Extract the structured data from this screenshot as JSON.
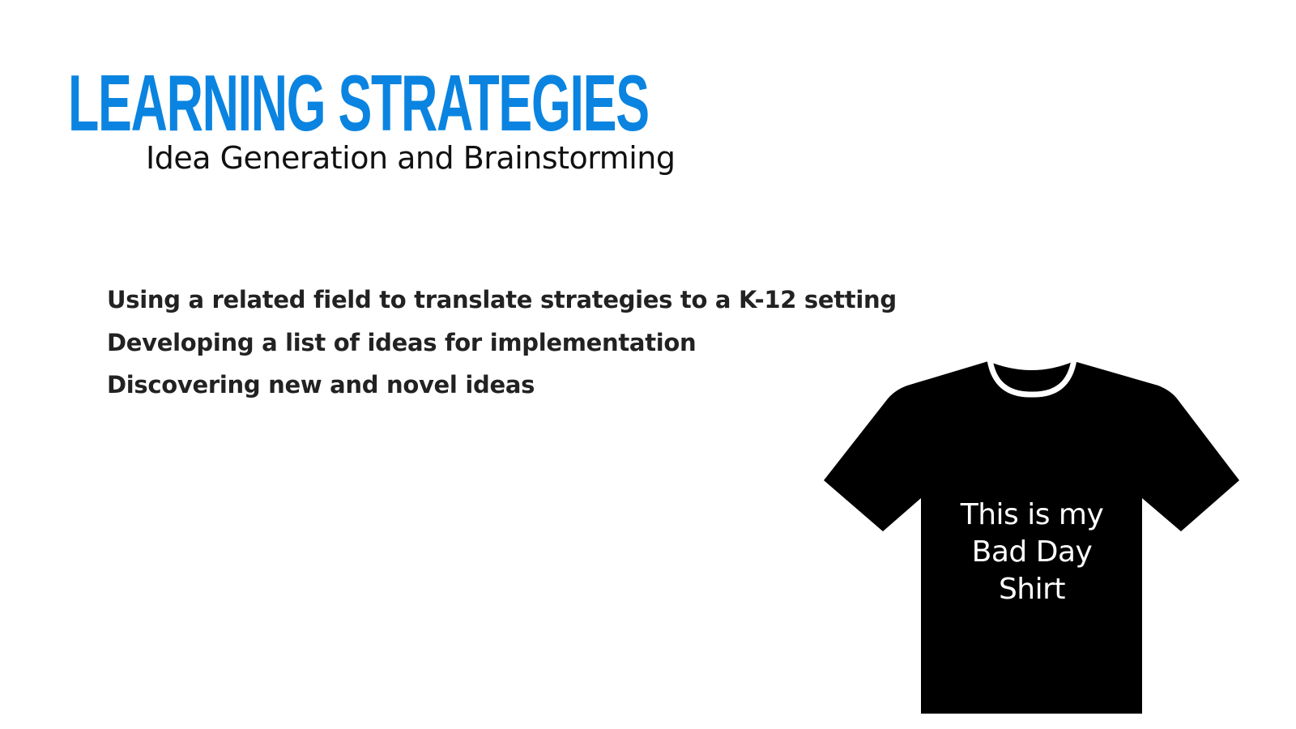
{
  "slide": {
    "title": "LEARNING STRATEGIES",
    "subtitle": "Idea Generation and Brainstorming",
    "bullets": [
      "Using a related field to translate strategies to a K-12 setting",
      "Developing a list of ideas for implementation",
      "Discovering new and novel ideas"
    ],
    "shirt_text": [
      "This is my",
      "Bad Day",
      "Shirt"
    ]
  },
  "colors": {
    "title": "#0a84e0",
    "text": "#222222",
    "shirt": "#000000",
    "background": "#ffffff"
  },
  "icons": {
    "shirt": "t-shirt-icon"
  }
}
